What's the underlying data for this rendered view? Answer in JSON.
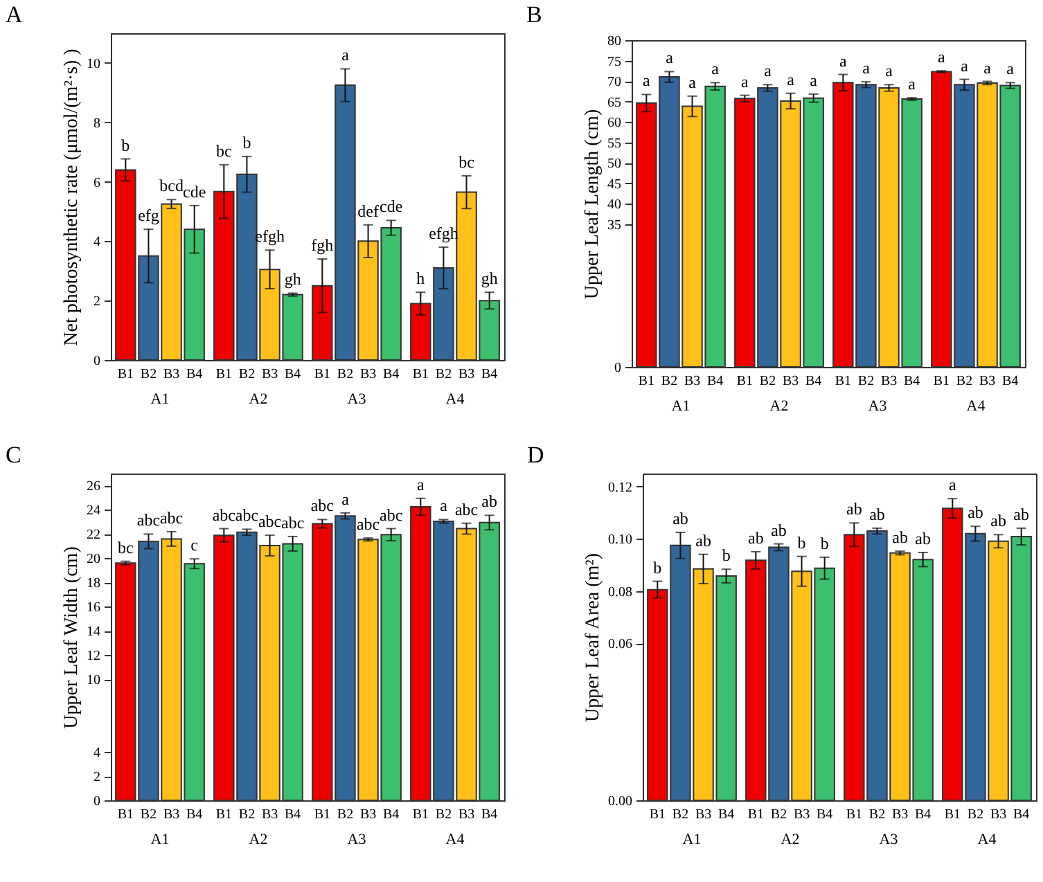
{
  "chart_data": [
    {
      "type": "bar",
      "title": "A",
      "ylabel": "Net photosynthetic rate (μmol/(m²·s) )",
      "categories": [
        "A1",
        "A2",
        "A3",
        "A4"
      ],
      "ylim": [
        0,
        11
      ],
      "yticks": [
        0,
        2,
        4,
        6,
        8,
        10
      ],
      "grid": false,
      "legend": false,
      "series": [
        {
          "name": "B1",
          "color": "#ee0000",
          "values": [
            6.4,
            5.67,
            2.5,
            1.9
          ],
          "errors": [
            0.37,
            0.9,
            0.9,
            0.38
          ],
          "value_labels": [
            "b",
            "bc",
            "fgh",
            "h"
          ]
        },
        {
          "name": "B2",
          "color": "#336699",
          "values": [
            3.5,
            6.25,
            9.25,
            3.1
          ],
          "errors": [
            0.9,
            0.6,
            0.55,
            0.7
          ],
          "value_labels": [
            "efg",
            "b",
            "a",
            "efgh"
          ]
        },
        {
          "name": "B3",
          "color": "#ffc01a",
          "values": [
            5.25,
            3.05,
            4.0,
            5.65
          ],
          "errors": [
            0.15,
            0.65,
            0.55,
            0.55
          ],
          "value_labels": [
            "bcd",
            "efgh",
            "def",
            "bc"
          ]
        },
        {
          "name": "B4",
          "color": "#3cbf6e",
          "values": [
            4.4,
            2.2,
            4.45,
            2.0
          ],
          "errors": [
            0.8,
            0.05,
            0.25,
            0.28
          ],
          "value_labels": [
            "cde",
            "gh",
            "cde",
            "gh"
          ]
        }
      ]
    },
    {
      "type": "bar",
      "title": "B",
      "ylabel": "Upper Leaf Length (cm)",
      "categories": [
        "A1",
        "A2",
        "A3",
        "A4"
      ],
      "ylim": [
        0,
        80
      ],
      "yticks": [
        0,
        35,
        40,
        45,
        50,
        55,
        60,
        65,
        70,
        75,
        80
      ],
      "grid": false,
      "legend": false,
      "series": [
        {
          "name": "B1",
          "color": "#ee0000",
          "values": [
            64.6,
            65.7,
            69.6,
            72.3
          ],
          "errors": [
            2.1,
            0.8,
            2.0,
            0.2
          ],
          "value_labels": [
            "a",
            "a",
            "a",
            "a"
          ]
        },
        {
          "name": "B2",
          "color": "#336699",
          "values": [
            71.0,
            68.3,
            69.1,
            69.1
          ],
          "errors": [
            1.3,
            0.8,
            0.7,
            1.3
          ],
          "value_labels": [
            "a",
            "a",
            "a",
            "a"
          ]
        },
        {
          "name": "B3",
          "color": "#ffc01a",
          "values": [
            63.8,
            65.1,
            68.3,
            69.5
          ],
          "errors": [
            2.5,
            1.9,
            0.8,
            0.4
          ],
          "value_labels": [
            "a",
            "a",
            "a",
            "a"
          ]
        },
        {
          "name": "B4",
          "color": "#3cbf6e",
          "values": [
            68.7,
            65.8,
            65.6,
            68.9
          ],
          "errors": [
            0.9,
            1.0,
            0.3,
            0.7
          ],
          "value_labels": [
            "a",
            "a",
            "a",
            "a"
          ]
        }
      ]
    },
    {
      "type": "bar",
      "title": "C",
      "ylabel": "Upper Leaf Width (cm)",
      "categories": [
        "A1",
        "A2",
        "A3",
        "A4"
      ],
      "ylim": [
        0,
        27
      ],
      "yticks": [
        0,
        2,
        4,
        10,
        12,
        14,
        16,
        18,
        20,
        22,
        24,
        26
      ],
      "grid": false,
      "legend": false,
      "series": [
        {
          "name": "B1",
          "color": "#ee0000",
          "values": [
            19.6,
            21.9,
            22.85,
            24.25
          ],
          "errors": [
            0.15,
            0.55,
            0.35,
            0.7
          ],
          "value_labels": [
            "bc",
            "abc",
            "abc",
            "a"
          ]
        },
        {
          "name": "B2",
          "color": "#336699",
          "values": [
            21.4,
            22.15,
            23.5,
            23.05
          ],
          "errors": [
            0.6,
            0.25,
            0.25,
            0.15
          ],
          "value_labels": [
            "abc",
            "abc",
            "a",
            "a"
          ]
        },
        {
          "name": "B3",
          "color": "#ffc01a",
          "values": [
            21.6,
            21.05,
            21.55,
            22.45
          ],
          "errors": [
            0.6,
            0.85,
            0.12,
            0.45
          ],
          "value_labels": [
            "abc",
            "abc",
            "abc",
            "abc"
          ]
        },
        {
          "name": "B4",
          "color": "#3cbf6e",
          "values": [
            19.55,
            21.2,
            21.95,
            22.95
          ],
          "errors": [
            0.4,
            0.6,
            0.5,
            0.6
          ],
          "value_labels": [
            "c",
            "abc",
            "abc",
            "ab"
          ]
        }
      ]
    },
    {
      "type": "bar",
      "title": "D",
      "ylabel": "Upper Leaf Area (m²)",
      "categories": [
        "A1",
        "A2",
        "A3",
        "A4"
      ],
      "ylim": [
        0,
        0.125
      ],
      "yticks": [
        {
          "value": 0,
          "label": "0.00"
        },
        {
          "value": 0.06,
          "label": "0.06"
        },
        {
          "value": 0.08,
          "label": "0.08"
        },
        {
          "value": 0.1,
          "label": "0.10"
        },
        {
          "value": 0.12,
          "label": "0.12"
        }
      ],
      "grid": false,
      "legend": false,
      "series": [
        {
          "name": "B1",
          "color": "#ee0000",
          "values": [
            0.0806,
            0.0918,
            0.1016,
            0.1117
          ],
          "errors": [
            0.0032,
            0.0033,
            0.0045,
            0.0037
          ],
          "value_labels": [
            "b",
            "ab",
            "ab",
            "a"
          ]
        },
        {
          "name": "B2",
          "color": "#336699",
          "values": [
            0.0975,
            0.0968,
            0.103,
            0.102
          ],
          "errors": [
            0.005,
            0.0013,
            0.0011,
            0.0028
          ],
          "value_labels": [
            "ab",
            "ab",
            "ab",
            "ab"
          ]
        },
        {
          "name": "B3",
          "color": "#ffc01a",
          "values": [
            0.0885,
            0.0876,
            0.0946,
            0.0991
          ],
          "errors": [
            0.0056,
            0.0057,
            0.0007,
            0.0025
          ],
          "value_labels": [
            "ab",
            "b",
            "ab",
            "ab"
          ]
        },
        {
          "name": "B4",
          "color": "#3cbf6e",
          "values": [
            0.0858,
            0.0888,
            0.0921,
            0.1009
          ],
          "errors": [
            0.0026,
            0.0042,
            0.0027,
            0.0032
          ],
          "value_labels": [
            "b",
            "b",
            "ab",
            "ab"
          ]
        }
      ]
    }
  ]
}
